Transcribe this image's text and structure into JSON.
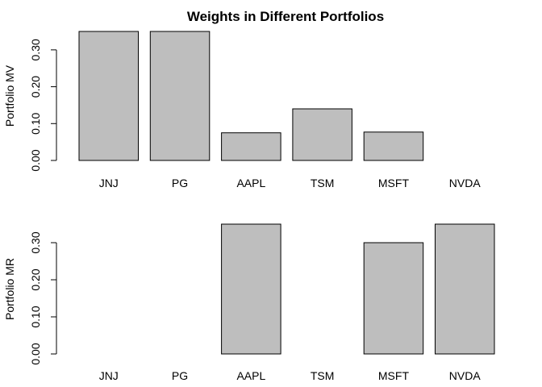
{
  "chart_data": [
    {
      "type": "bar",
      "title": "Weights in Different Portfolios",
      "xlabel": "",
      "ylabel": "Portfolio MV",
      "categories": [
        "JNJ",
        "PG",
        "AAPL",
        "TSM",
        "MSFT",
        "NVDA"
      ],
      "values": [
        0.35,
        0.35,
        0.075,
        0.14,
        0.077,
        0.0
      ],
      "ylim": [
        0,
        0.35
      ],
      "yticks": [
        "0.00",
        "0.10",
        "0.20",
        "0.30"
      ],
      "grid": false
    },
    {
      "type": "bar",
      "title": "",
      "xlabel": "",
      "ylabel": "Portfolio MR",
      "categories": [
        "JNJ",
        "PG",
        "AAPL",
        "TSM",
        "MSFT",
        "NVDA"
      ],
      "values": [
        0.0,
        0.0,
        0.35,
        0.0,
        0.3,
        0.35
      ],
      "ylim": [
        0,
        0.35
      ],
      "yticks": [
        "0.00",
        "0.10",
        "0.20",
        "0.30"
      ],
      "grid": false
    }
  ]
}
